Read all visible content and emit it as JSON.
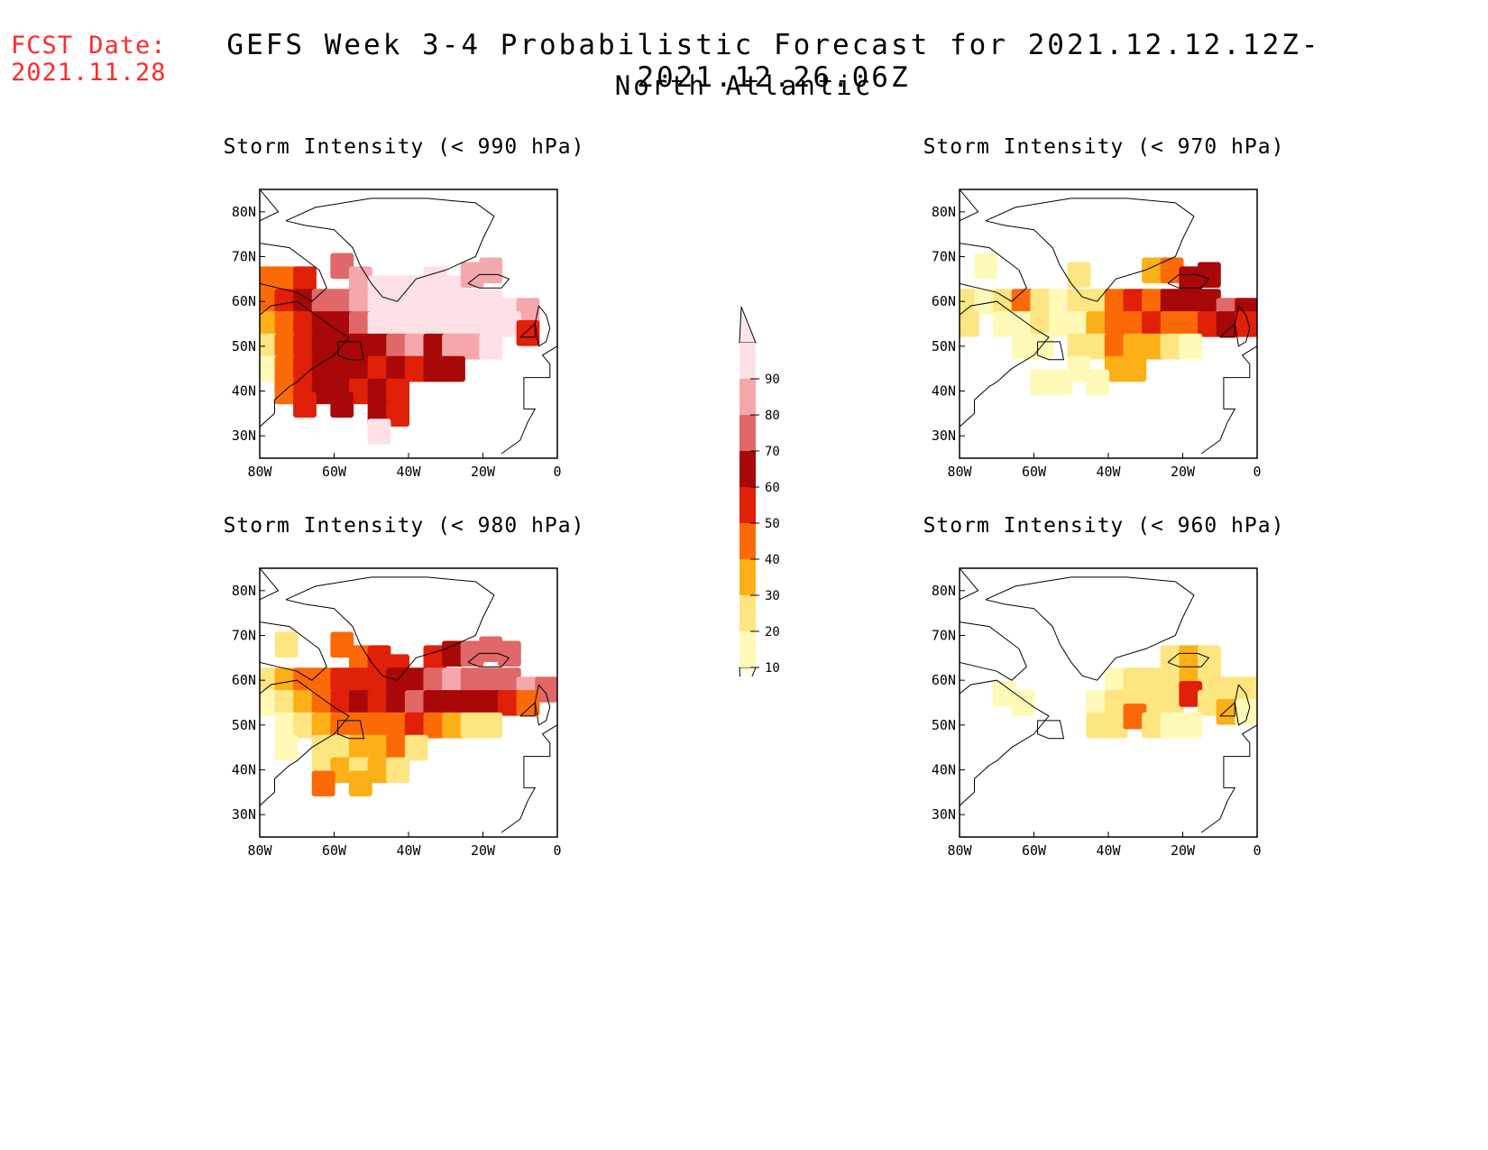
{
  "header": {
    "fcst_label": "FCST Date:",
    "fcst_date": "2021.11.28",
    "title": "GEFS Week 3-4 Probabilistic Forecast for 2021.12.12.12Z-2021.12.26.06Z",
    "subtitle": "North Atlantic"
  },
  "axes": {
    "lon_labels": [
      "80W",
      "60W",
      "40W",
      "20W",
      "0"
    ],
    "lat_labels": [
      "80N",
      "70N",
      "60N",
      "50N",
      "40N",
      "30N"
    ]
  },
  "panels": [
    {
      "id": "p990",
      "title": "Storm Intensity (< 990 hPa)"
    },
    {
      "id": "p970",
      "title": "Storm Intensity (< 970 hPa)"
    },
    {
      "id": "p980",
      "title": "Storm Intensity (< 980 hPa)"
    },
    {
      "id": "p960",
      "title": "Storm Intensity (< 960 hPa)"
    }
  ],
  "colorbar": {
    "levels": [
      "10",
      "20",
      "30",
      "40",
      "50",
      "60",
      "70",
      "80",
      "90"
    ],
    "colors": [
      "#fff9b8",
      "#fde582",
      "#fcb018",
      "#fc6a08",
      "#e02008",
      "#a80808",
      "#e06868",
      "#f4a8ac",
      "#fde0e6"
    ]
  },
  "chart_data": {
    "type": "heatmap",
    "lon_range": [
      -80,
      0
    ],
    "lat_range": [
      25,
      85
    ],
    "units": "probability (%)",
    "grid_step_deg": 5,
    "maps": [
      {
        "panel": "p990",
        "title": "Storm Intensity (< 990 hPa)",
        "cells": [
          [
            -78,
            65,
            45
          ],
          [
            -73,
            65,
            45
          ],
          [
            -68,
            65,
            55
          ],
          [
            -58,
            68,
            70
          ],
          [
            -53,
            65,
            85
          ],
          [
            -48,
            63,
            92
          ],
          [
            -43,
            63,
            92
          ],
          [
            -38,
            63,
            90
          ],
          [
            -33,
            65,
            92
          ],
          [
            -28,
            63,
            90
          ],
          [
            -23,
            66,
            88
          ],
          [
            -18,
            67,
            85
          ],
          [
            -78,
            60,
            45
          ],
          [
            -73,
            60,
            55
          ],
          [
            -68,
            60,
            65
          ],
          [
            -63,
            60,
            70
          ],
          [
            -58,
            60,
            75
          ],
          [
            -53,
            60,
            85
          ],
          [
            -48,
            60,
            92
          ],
          [
            -43,
            60,
            92
          ],
          [
            -38,
            60,
            92
          ],
          [
            -33,
            60,
            92
          ],
          [
            -28,
            60,
            90
          ],
          [
            -23,
            60,
            92
          ],
          [
            -18,
            60,
            92
          ],
          [
            -13,
            58,
            90
          ],
          [
            -8,
            58,
            85
          ],
          [
            -78,
            55,
            35
          ],
          [
            -73,
            55,
            45
          ],
          [
            -68,
            55,
            55
          ],
          [
            -63,
            55,
            60
          ],
          [
            -58,
            55,
            65
          ],
          [
            -53,
            55,
            75
          ],
          [
            -48,
            55,
            92
          ],
          [
            -43,
            55,
            92
          ],
          [
            -38,
            55,
            90
          ],
          [
            -33,
            55,
            92
          ],
          [
            -28,
            55,
            90
          ],
          [
            -23,
            55,
            92
          ],
          [
            -18,
            55,
            92
          ],
          [
            -13,
            55,
            90
          ],
          [
            -8,
            53,
            55
          ],
          [
            -78,
            50,
            25
          ],
          [
            -73,
            50,
            45
          ],
          [
            -68,
            50,
            55
          ],
          [
            -63,
            50,
            60
          ],
          [
            -58,
            50,
            65
          ],
          [
            -53,
            50,
            60
          ],
          [
            -48,
            50,
            65
          ],
          [
            -43,
            50,
            70
          ],
          [
            -38,
            50,
            80
          ],
          [
            -33,
            50,
            65
          ],
          [
            -28,
            50,
            80
          ],
          [
            -23,
            50,
            85
          ],
          [
            -18,
            50,
            90
          ],
          [
            -78,
            45,
            15
          ],
          [
            -73,
            45,
            40
          ],
          [
            -68,
            45,
            55
          ],
          [
            -63,
            45,
            65
          ],
          [
            -58,
            45,
            60
          ],
          [
            -53,
            45,
            65
          ],
          [
            -48,
            45,
            55
          ],
          [
            -43,
            45,
            65
          ],
          [
            -38,
            45,
            55
          ],
          [
            -33,
            45,
            60
          ],
          [
            -28,
            45,
            60
          ],
          [
            -73,
            40,
            45
          ],
          [
            -68,
            40,
            55
          ],
          [
            -63,
            40,
            65
          ],
          [
            -58,
            40,
            60
          ],
          [
            -53,
            40,
            55
          ],
          [
            -48,
            40,
            60
          ],
          [
            -43,
            40,
            50
          ],
          [
            -68,
            37,
            55
          ],
          [
            -58,
            37,
            65
          ],
          [
            -48,
            35,
            60
          ],
          [
            -43,
            35,
            55
          ],
          [
            -48,
            31,
            92
          ]
        ]
      },
      {
        "panel": "p970",
        "title": "Storm Intensity (< 970 hPa)",
        "cells": [
          [
            -73,
            68,
            15
          ],
          [
            -48,
            66,
            20
          ],
          [
            -28,
            67,
            30
          ],
          [
            -23,
            67,
            40
          ],
          [
            -18,
            65,
            60
          ],
          [
            -13,
            66,
            60
          ],
          [
            -78,
            60,
            20
          ],
          [
            -73,
            60,
            15
          ],
          [
            -68,
            60,
            25
          ],
          [
            -63,
            60,
            45
          ],
          [
            -58,
            60,
            25
          ],
          [
            -53,
            60,
            15
          ],
          [
            -48,
            60,
            20
          ],
          [
            -43,
            60,
            20
          ],
          [
            -38,
            60,
            45
          ],
          [
            -33,
            60,
            55
          ],
          [
            -28,
            60,
            45
          ],
          [
            -23,
            60,
            60
          ],
          [
            -18,
            60,
            65
          ],
          [
            -13,
            60,
            65
          ],
          [
            -8,
            58,
            70
          ],
          [
            -3,
            58,
            65
          ],
          [
            -78,
            55,
            20
          ],
          [
            -68,
            55,
            15
          ],
          [
            -63,
            55,
            15
          ],
          [
            -58,
            55,
            20
          ],
          [
            -53,
            55,
            15
          ],
          [
            -48,
            55,
            15
          ],
          [
            -43,
            55,
            30
          ],
          [
            -38,
            55,
            45
          ],
          [
            -33,
            55,
            40
          ],
          [
            -28,
            55,
            55
          ],
          [
            -23,
            55,
            45
          ],
          [
            -18,
            55,
            45
          ],
          [
            -13,
            55,
            55
          ],
          [
            -8,
            55,
            60
          ],
          [
            -3,
            55,
            50
          ],
          [
            -63,
            50,
            15
          ],
          [
            -58,
            50,
            15
          ],
          [
            -48,
            50,
            20
          ],
          [
            -43,
            50,
            25
          ],
          [
            -38,
            50,
            40
          ],
          [
            -33,
            50,
            35
          ],
          [
            -28,
            50,
            30
          ],
          [
            -23,
            50,
            20
          ],
          [
            -18,
            50,
            15
          ],
          [
            -48,
            45,
            15
          ],
          [
            -38,
            45,
            30
          ],
          [
            -33,
            45,
            35
          ],
          [
            -53,
            42,
            10
          ],
          [
            -58,
            42,
            10
          ],
          [
            -43,
            42,
            10
          ]
        ]
      },
      {
        "panel": "p980",
        "title": "Storm Intensity (< 980 hPa)",
        "cells": [
          [
            -73,
            68,
            20
          ],
          [
            -58,
            68,
            40
          ],
          [
            -53,
            65,
            45
          ],
          [
            -48,
            65,
            55
          ],
          [
            -43,
            63,
            55
          ],
          [
            -33,
            65,
            55
          ],
          [
            -28,
            66,
            65
          ],
          [
            -23,
            66,
            75
          ],
          [
            -18,
            67,
            70
          ],
          [
            -13,
            66,
            70
          ],
          [
            -78,
            60,
            20
          ],
          [
            -73,
            60,
            30
          ],
          [
            -68,
            60,
            40
          ],
          [
            -63,
            60,
            45
          ],
          [
            -58,
            60,
            50
          ],
          [
            -53,
            60,
            50
          ],
          [
            -48,
            60,
            55
          ],
          [
            -43,
            60,
            60
          ],
          [
            -38,
            60,
            65
          ],
          [
            -33,
            60,
            75
          ],
          [
            -28,
            60,
            80
          ],
          [
            -23,
            60,
            75
          ],
          [
            -18,
            60,
            70
          ],
          [
            -13,
            60,
            75
          ],
          [
            -8,
            58,
            80
          ],
          [
            -3,
            58,
            70
          ],
          [
            -78,
            55,
            15
          ],
          [
            -73,
            55,
            25
          ],
          [
            -68,
            55,
            35
          ],
          [
            -63,
            55,
            45
          ],
          [
            -58,
            55,
            55
          ],
          [
            -53,
            55,
            60
          ],
          [
            -48,
            55,
            55
          ],
          [
            -43,
            55,
            65
          ],
          [
            -38,
            55,
            70
          ],
          [
            -33,
            55,
            65
          ],
          [
            -28,
            55,
            65
          ],
          [
            -23,
            55,
            60
          ],
          [
            -18,
            55,
            60
          ],
          [
            -13,
            55,
            55
          ],
          [
            -8,
            55,
            45
          ],
          [
            -73,
            50,
            15
          ],
          [
            -68,
            50,
            20
          ],
          [
            -63,
            50,
            30
          ],
          [
            -58,
            50,
            40
          ],
          [
            -53,
            50,
            45
          ],
          [
            -48,
            50,
            40
          ],
          [
            -43,
            50,
            45
          ],
          [
            -38,
            50,
            50
          ],
          [
            -33,
            50,
            40
          ],
          [
            -28,
            50,
            35
          ],
          [
            -23,
            50,
            25
          ],
          [
            -18,
            50,
            20
          ],
          [
            -73,
            45,
            15
          ],
          [
            -63,
            45,
            20
          ],
          [
            -58,
            45,
            25
          ],
          [
            -53,
            45,
            30
          ],
          [
            -48,
            45,
            35
          ],
          [
            -43,
            45,
            40
          ],
          [
            -38,
            45,
            25
          ],
          [
            -63,
            40,
            20
          ],
          [
            -58,
            40,
            30
          ],
          [
            -53,
            40,
            25
          ],
          [
            -48,
            40,
            30
          ],
          [
            -43,
            40,
            20
          ],
          [
            -63,
            37,
            45
          ],
          [
            -53,
            37,
            35
          ]
        ]
      },
      {
        "panel": "p960",
        "title": "Storm Intensity (< 960 hPa)",
        "cells": [
          [
            -23,
            65,
            20
          ],
          [
            -18,
            65,
            35
          ],
          [
            -13,
            65,
            20
          ],
          [
            -38,
            60,
            15
          ],
          [
            -33,
            60,
            20
          ],
          [
            -28,
            60,
            20
          ],
          [
            -23,
            60,
            25
          ],
          [
            -18,
            60,
            30
          ],
          [
            -13,
            60,
            20
          ],
          [
            -8,
            58,
            25
          ],
          [
            -3,
            58,
            20
          ],
          [
            -68,
            57,
            15
          ],
          [
            -63,
            55,
            15
          ],
          [
            -43,
            55,
            15
          ],
          [
            -38,
            55,
            20
          ],
          [
            -33,
            55,
            25
          ],
          [
            -28,
            55,
            20
          ],
          [
            -23,
            55,
            25
          ],
          [
            -18,
            57,
            55
          ],
          [
            -13,
            55,
            20
          ],
          [
            -8,
            53,
            35
          ],
          [
            -3,
            53,
            15
          ],
          [
            -43,
            50,
            20
          ],
          [
            -38,
            50,
            25
          ],
          [
            -33,
            52,
            45
          ],
          [
            -28,
            50,
            20
          ],
          [
            -23,
            50,
            15
          ],
          [
            -18,
            50,
            15
          ]
        ]
      }
    ]
  }
}
